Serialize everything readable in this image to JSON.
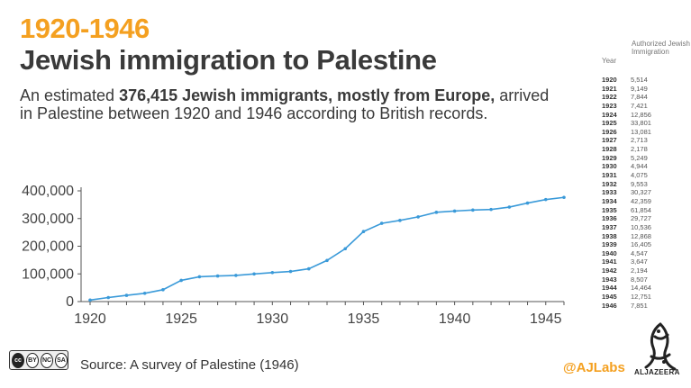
{
  "header": {
    "kicker": "1920-1946",
    "title": "Jewish immigration to Palestine",
    "subtitle_pre": "An estimated ",
    "subtitle_bold": "376,415 Jewish immigrants, mostly from Europe,",
    "subtitle_post": " arrived in Palestine between 1920 and 1946 according to British records."
  },
  "chart_data": {
    "type": "line",
    "title": "",
    "xlabel": "",
    "ylabel": "",
    "x": [
      1920,
      1921,
      1922,
      1923,
      1924,
      1925,
      1926,
      1927,
      1928,
      1929,
      1930,
      1931,
      1932,
      1933,
      1934,
      1935,
      1936,
      1937,
      1938,
      1939,
      1940,
      1941,
      1942,
      1943,
      1944,
      1945,
      1946
    ],
    "series": [
      {
        "values": [
          5514,
          14663,
          22507,
          29928,
          42784,
          76585,
          89666,
          92379,
          94557,
          99806,
          104750,
          108825,
          118378,
          148705,
          191064,
          252918,
          282645,
          293181,
          306049,
          322454,
          327001,
          330648,
          332842,
          341349,
          355813,
          368564,
          376415
        ],
        "color": "#3a9ad9"
      }
    ],
    "xticks": [
      1920,
      1925,
      1930,
      1935,
      1940,
      1945
    ],
    "xtick_labels": [
      "1920",
      "1925",
      "1930",
      "1935",
      "1940",
      "1945"
    ],
    "yticks": [
      0,
      100000,
      200000,
      300000,
      400000
    ],
    "ytick_labels": [
      "0",
      "100,000",
      "200,000",
      "300,000",
      "400,000"
    ],
    "xlim": [
      1920,
      1946
    ],
    "ylim": [
      0,
      400000
    ],
    "grid": false,
    "legend": "none"
  },
  "table": {
    "year_header": "Year",
    "value_header": "Authorized Jewish Immigration",
    "rows": [
      {
        "year": "1920",
        "value": "5,514"
      },
      {
        "year": "1921",
        "value": "9,149"
      },
      {
        "year": "1922",
        "value": "7,844"
      },
      {
        "year": "1923",
        "value": "7,421"
      },
      {
        "year": "1924",
        "value": "12,856"
      },
      {
        "year": "1925",
        "value": "33,801"
      },
      {
        "year": "1926",
        "value": "13,081"
      },
      {
        "year": "1927",
        "value": "2,713"
      },
      {
        "year": "1928",
        "value": "2,178"
      },
      {
        "year": "1929",
        "value": "5,249"
      },
      {
        "year": "1930",
        "value": "4,944"
      },
      {
        "year": "1931",
        "value": "4,075"
      },
      {
        "year": "1932",
        "value": "9,553"
      },
      {
        "year": "1933",
        "value": "30,327"
      },
      {
        "year": "1934",
        "value": "42,359"
      },
      {
        "year": "1935",
        "value": "61,854"
      },
      {
        "year": "1936",
        "value": "29,727"
      },
      {
        "year": "1937",
        "value": "10,536"
      },
      {
        "year": "1938",
        "value": "12,868"
      },
      {
        "year": "1939",
        "value": "16,405"
      },
      {
        "year": "1940",
        "value": "4,547"
      },
      {
        "year": "1941",
        "value": "3,647"
      },
      {
        "year": "1942",
        "value": "2,194"
      },
      {
        "year": "1943",
        "value": "8,507"
      },
      {
        "year": "1944",
        "value": "14,464"
      },
      {
        "year": "1945",
        "value": "12,751"
      },
      {
        "year": "1946",
        "value": "7,851"
      }
    ]
  },
  "footer": {
    "license_labels": [
      "cc",
      "BY",
      "NC",
      "SA"
    ],
    "source": "Source: A survey of Palestine (1946)",
    "handle": "@AJLabs",
    "brand": "ALJAZEERA"
  },
  "colors": {
    "accent": "#f4a020",
    "line": "#3a9ad9",
    "text": "#3a3a3a"
  }
}
